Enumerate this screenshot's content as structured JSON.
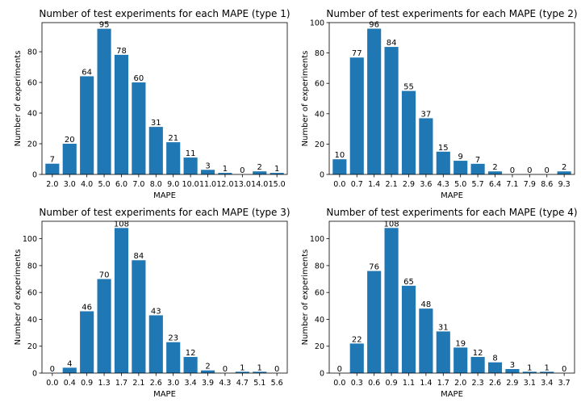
{
  "chart_data": [
    {
      "type": "bar",
      "title": "Number of test experiments for each MAPE (type 1)",
      "xlabel": "MAPE",
      "ylabel": "Number of experiments",
      "categories": [
        "2.0",
        "3.0",
        "4.0",
        "5.0",
        "6.0",
        "7.0",
        "8.0",
        "9.0",
        "10.0",
        "11.0",
        "12.0",
        "13.0",
        "14.0",
        "15.0"
      ],
      "values": [
        7,
        20,
        64,
        95,
        78,
        60,
        31,
        21,
        11,
        3,
        1,
        0,
        2,
        1
      ],
      "ylim": [
        0,
        99
      ],
      "yticks": [
        0,
        20,
        40,
        60,
        80
      ],
      "color": "#1f77b4"
    },
    {
      "type": "bar",
      "title": "Number of test experiments for each MAPE (type 2)",
      "xlabel": "MAPE",
      "ylabel": "Number of experiments",
      "categories": [
        "0.0",
        "0.7",
        "1.4",
        "2.1",
        "2.9",
        "3.6",
        "4.3",
        "5.0",
        "5.7",
        "6.4",
        "7.1",
        "7.9",
        "8.6",
        "9.3"
      ],
      "values": [
        10,
        77,
        96,
        84,
        55,
        37,
        15,
        9,
        7,
        2,
        0,
        0,
        0,
        2
      ],
      "ylim": [
        0,
        100
      ],
      "yticks": [
        0,
        20,
        40,
        60,
        80,
        100
      ],
      "color": "#1f77b4"
    },
    {
      "type": "bar",
      "title": "Number of test experiments for each MAPE (type 3)",
      "xlabel": "MAPE",
      "ylabel": "Number of experiments",
      "categories": [
        "0.0",
        "0.4",
        "0.9",
        "1.3",
        "1.7",
        "2.1",
        "2.6",
        "3.0",
        "3.4",
        "3.9",
        "4.3",
        "4.7",
        "5.1",
        "5.6"
      ],
      "values": [
        0,
        4,
        46,
        70,
        108,
        84,
        43,
        23,
        12,
        2,
        0,
        1,
        1,
        0
      ],
      "ylim": [
        0,
        113
      ],
      "yticks": [
        0,
        20,
        40,
        60,
        80,
        100
      ],
      "color": "#1f77b4"
    },
    {
      "type": "bar",
      "title": "Number of test experiments for each MAPE (type 4)",
      "xlabel": "MAPE",
      "ylabel": "Number of experiments",
      "categories": [
        "0.0",
        "0.3",
        "0.6",
        "0.9",
        "1.1",
        "1.4",
        "1.7",
        "2.0",
        "2.3",
        "2.6",
        "2.9",
        "3.1",
        "3.4",
        "3.7"
      ],
      "values": [
        0,
        22,
        76,
        108,
        65,
        48,
        31,
        19,
        12,
        8,
        3,
        1,
        1,
        0
      ],
      "ylim": [
        0,
        113
      ],
      "yticks": [
        0,
        20,
        40,
        60,
        80,
        100
      ],
      "color": "#1f77b4"
    }
  ]
}
